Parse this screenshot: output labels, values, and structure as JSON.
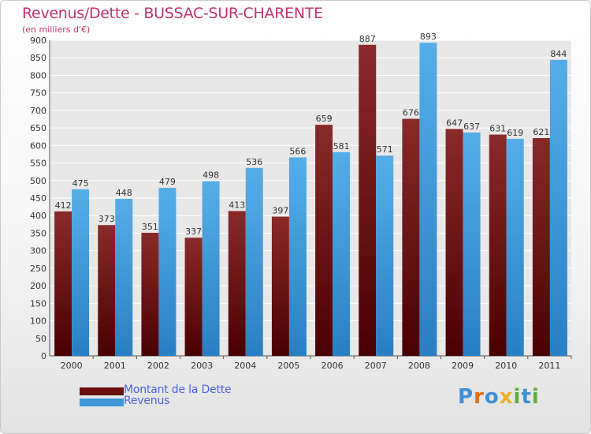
{
  "title": "Revenus/Dette - BUSSAC-SUR-CHARENTE",
  "subtitle": "(en milliers d'€)",
  "chart_data": {
    "type": "bar",
    "categories": [
      "2000",
      "2001",
      "2002",
      "2003",
      "2004",
      "2005",
      "2006",
      "2007",
      "2008",
      "2009",
      "2010",
      "2011"
    ],
    "series": [
      {
        "name": "Montant de la Dette",
        "color": "#7d2222",
        "values": [
          412,
          373,
          351,
          337,
          413,
          397,
          659,
          887,
          676,
          647,
          631,
          621
        ]
      },
      {
        "name": "Revenus",
        "color": "#4aa5e3",
        "values": [
          475,
          448,
          479,
          498,
          536,
          566,
          581,
          571,
          893,
          637,
          619,
          844
        ]
      }
    ],
    "ylim": [
      0,
      900
    ],
    "yticks": [
      0,
      50,
      100,
      150,
      200,
      250,
      300,
      350,
      400,
      450,
      500,
      550,
      600,
      650,
      700,
      750,
      800,
      850,
      900
    ],
    "grid": true,
    "legend": "bottom-left"
  },
  "legend": {
    "items": [
      {
        "label": "Montant de la Dette",
        "color": "#6b0f0f"
      },
      {
        "label": "Revenus",
        "color": "#3d98db"
      }
    ]
  },
  "logo": {
    "letters": [
      {
        "ch": "P",
        "color": "#3f8fd6"
      },
      {
        "ch": "r",
        "color": "#e0701a"
      },
      {
        "ch": "o",
        "color": "#3f8fd6"
      },
      {
        "ch": "x",
        "color": "#e8b02a"
      },
      {
        "ch": "i",
        "color": "#5cae3a"
      },
      {
        "ch": "t",
        "color": "#3f8fd6"
      },
      {
        "ch": "i",
        "color": "#5cae3a"
      }
    ]
  }
}
